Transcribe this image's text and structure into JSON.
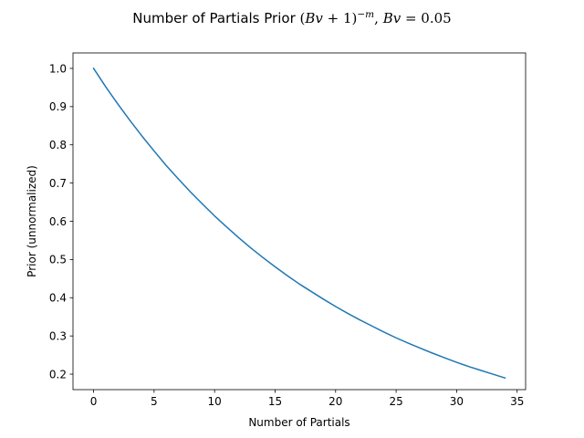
{
  "chart_data": {
    "type": "line",
    "title": {
      "prefix": "Number of Partials Prior ",
      "open": "(",
      "bv1": "Bv",
      "plus": " + 1",
      "close": ")",
      "exponent": "−m",
      "sep": ", ",
      "bv2": "Bv",
      "equals": " = 0.05"
    },
    "xlabel": "Number of Partials",
    "ylabel": "Prior (unnormalized)",
    "xlim": [
      -1.7,
      35.7
    ],
    "ylim": [
      0.1595,
      1.0405
    ],
    "xticks": [
      0,
      5,
      10,
      15,
      20,
      25,
      30,
      35
    ],
    "xtick_labels": [
      "0",
      "5",
      "10",
      "15",
      "20",
      "25",
      "30",
      "35"
    ],
    "yticks": [
      0.2,
      0.3,
      0.4,
      0.5,
      0.6,
      0.7,
      0.8,
      0.9,
      1.0
    ],
    "ytick_labels": [
      "0.2",
      "0.3",
      "0.4",
      "0.5",
      "0.6",
      "0.7",
      "0.8",
      "0.9",
      "1.0"
    ],
    "grid": false,
    "line_color": "#1f77b4",
    "series": [
      {
        "x": [
          0,
          1,
          2,
          3,
          4,
          5,
          6,
          7,
          8,
          9,
          10,
          11,
          12,
          13,
          14,
          15,
          16,
          17,
          18,
          19,
          20,
          21,
          22,
          23,
          24,
          25,
          26,
          27,
          28,
          29,
          30,
          31,
          32,
          33,
          34
        ],
        "values": [
          1.0,
          0.952,
          0.907,
          0.864,
          0.823,
          0.784,
          0.746,
          0.711,
          0.677,
          0.645,
          0.614,
          0.585,
          0.557,
          0.53,
          0.505,
          0.481,
          0.458,
          0.436,
          0.416,
          0.396,
          0.377,
          0.359,
          0.342,
          0.326,
          0.31,
          0.295,
          0.281,
          0.268,
          0.255,
          0.243,
          0.231,
          0.22,
          0.21,
          0.2,
          0.19
        ]
      }
    ]
  }
}
